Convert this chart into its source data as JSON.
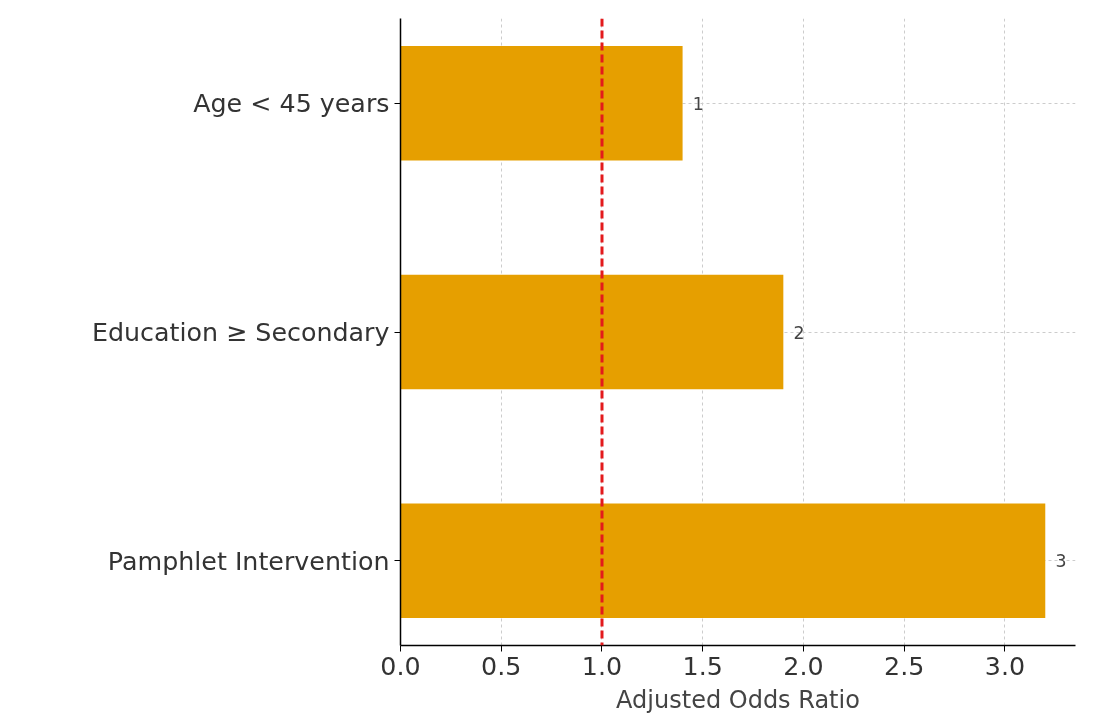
{
  "chart_data": {
    "type": "bar",
    "orientation": "horizontal",
    "categories": [
      "Age < 45 years",
      "Education ≥ Secondary",
      "Pamphlet Intervention"
    ],
    "values": [
      1.4,
      1.9,
      3.2
    ],
    "color": "#e69f00",
    "value_labels": [
      "1",
      "2",
      "3"
    ],
    "xlabel": "Adjusted Odds Ratio",
    "xlim": [
      0,
      3.35
    ],
    "xticks": [
      {
        "value": 0,
        "label": "0.0"
      },
      {
        "value": 0.5,
        "label": "0.5"
      },
      {
        "value": 1,
        "label": "1.0"
      },
      {
        "value": 1.5,
        "label": "1.5"
      },
      {
        "value": 2,
        "label": "2.0"
      },
      {
        "value": 2.5,
        "label": "2.5"
      },
      {
        "value": 3,
        "label": "3.0"
      }
    ],
    "ref_lines": [
      {
        "axis": "x",
        "value": 1,
        "color": "#e31a1c",
        "line_style": "dashed"
      }
    ],
    "grid": true
  }
}
